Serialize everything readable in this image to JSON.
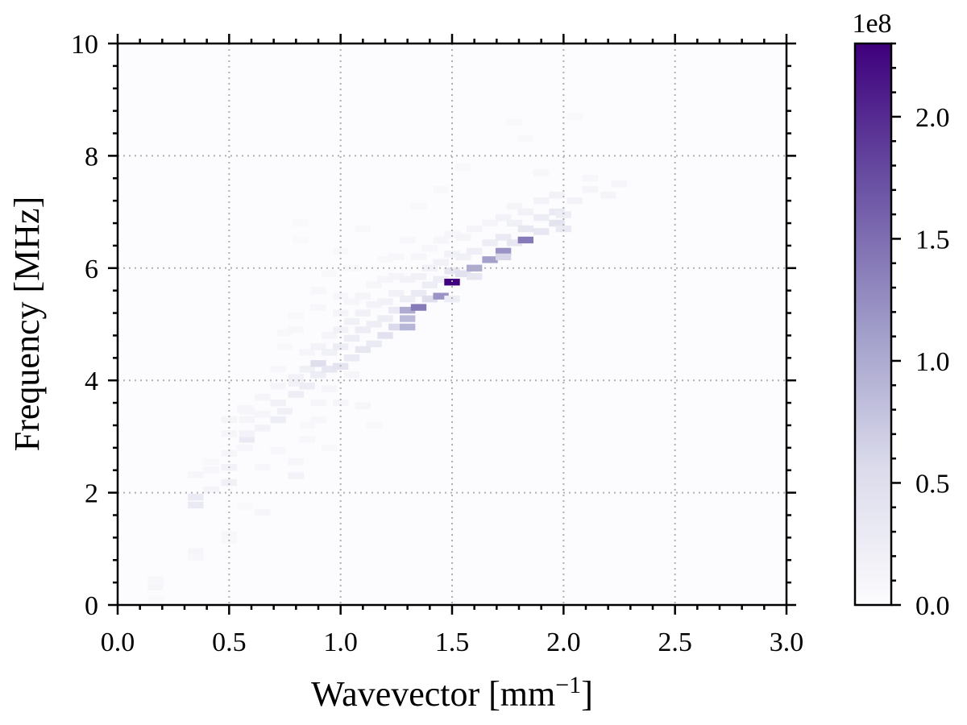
{
  "chart_data": {
    "type": "heatmap",
    "xlabel": "Wavevector [mm",
    "xlabel_sup": "−1",
    "xlabel_tail": "]",
    "ylabel": "Frequency [MHz]",
    "xlim": [
      0.0,
      3.0
    ],
    "ylim": [
      0,
      10
    ],
    "x_ticks": [
      0.0,
      0.5,
      1.0,
      1.5,
      2.0,
      2.5,
      3.0
    ],
    "x_tick_labels": [
      "0.0",
      "0.5",
      "1.0",
      "1.5",
      "2.0",
      "2.5",
      "3.0"
    ],
    "y_ticks": [
      0,
      2,
      4,
      6,
      8,
      10
    ],
    "y_tick_labels": [
      "0",
      "2",
      "4",
      "6",
      "8",
      "10"
    ],
    "grid": "dotted",
    "colormap": "Purples",
    "colors": {
      "low": "#fcfbfd",
      "mid": "#9e9ac8",
      "high": "#3f007d",
      "grid": "#b0b0b0",
      "axis": "#000000"
    },
    "colorbar": {
      "range": [
        0.0,
        2.3
      ],
      "exponent_label": "1e8",
      "ticks": [
        0.0,
        0.5,
        1.0,
        1.5,
        2.0
      ],
      "tick_labels": [
        "0.0",
        "0.5",
        "1.0",
        "1.5",
        "2.0"
      ]
    },
    "cells_note_units": "x in mm^-1, y in MHz, value in units of 1e8",
    "cells": [
      [
        0.17,
        0.45,
        0.08
      ],
      [
        0.17,
        0.32,
        0.1
      ],
      [
        0.17,
        0.1,
        0.05
      ],
      [
        0.35,
        0.95,
        0.1
      ],
      [
        0.35,
        0.85,
        0.08
      ],
      [
        0.35,
        2.32,
        0.1
      ],
      [
        0.35,
        1.92,
        0.3
      ],
      [
        0.35,
        1.78,
        0.3
      ],
      [
        0.42,
        2.05,
        0.12
      ],
      [
        0.42,
        2.4,
        0.08
      ],
      [
        0.42,
        2.55,
        0.06
      ],
      [
        0.5,
        2.18,
        0.2
      ],
      [
        0.5,
        2.45,
        0.15
      ],
      [
        0.5,
        2.7,
        0.1
      ],
      [
        0.5,
        3.05,
        0.1
      ],
      [
        0.5,
        3.3,
        0.12
      ],
      [
        0.5,
        1.25,
        0.08
      ],
      [
        0.5,
        1.15,
        0.06
      ],
      [
        0.57,
        2.8,
        0.08
      ],
      [
        0.57,
        3.5,
        0.1
      ],
      [
        0.57,
        1.75,
        0.05
      ],
      [
        0.58,
        3.3,
        0.12
      ],
      [
        0.58,
        3.45,
        0.1
      ],
      [
        0.58,
        2.95,
        0.3
      ],
      [
        0.58,
        3.05,
        0.15
      ],
      [
        0.65,
        3.15,
        0.15
      ],
      [
        0.65,
        3.7,
        0.12
      ],
      [
        0.65,
        2.45,
        0.08
      ],
      [
        0.65,
        3.4,
        0.1
      ],
      [
        0.65,
        1.65,
        0.1
      ],
      [
        0.72,
        3.3,
        0.25
      ],
      [
        0.72,
        3.6,
        0.18
      ],
      [
        0.72,
        3.9,
        0.12
      ],
      [
        0.72,
        4.2,
        0.08
      ],
      [
        0.72,
        2.75,
        0.08
      ],
      [
        0.75,
        3.45,
        0.2
      ],
      [
        0.75,
        4.6,
        0.06
      ],
      [
        0.75,
        4.85,
        0.06
      ],
      [
        0.8,
        3.75,
        0.25
      ],
      [
        0.8,
        4.05,
        0.18
      ],
      [
        0.8,
        3.95,
        0.18
      ],
      [
        0.8,
        2.3,
        0.15
      ],
      [
        0.8,
        2.55,
        0.1
      ],
      [
        0.8,
        4.9,
        0.08
      ],
      [
        0.8,
        5.15,
        0.06
      ],
      [
        0.82,
        6.8,
        0.05
      ],
      [
        0.82,
        6.5,
        0.05
      ],
      [
        0.85,
        3.9,
        0.25
      ],
      [
        0.85,
        4.2,
        0.2
      ],
      [
        0.85,
        4.5,
        0.1
      ],
      [
        0.85,
        2.95,
        0.08
      ],
      [
        0.85,
        3.2,
        0.06
      ],
      [
        0.9,
        4.3,
        0.5
      ],
      [
        0.9,
        4.1,
        0.25
      ],
      [
        0.9,
        4.6,
        0.15
      ],
      [
        0.9,
        5.3,
        0.08
      ],
      [
        0.9,
        5.6,
        0.08
      ],
      [
        0.9,
        3.6,
        0.1
      ],
      [
        0.9,
        3.3,
        0.08
      ],
      [
        0.95,
        4.2,
        0.35
      ],
      [
        0.95,
        4.5,
        0.2
      ],
      [
        0.95,
        4.8,
        0.12
      ],
      [
        0.95,
        3.85,
        0.1
      ],
      [
        0.95,
        2.8,
        0.06
      ],
      [
        0.95,
        5.9,
        0.06
      ],
      [
        1.0,
        4.25,
        0.4
      ],
      [
        1.0,
        4.6,
        0.25
      ],
      [
        1.0,
        4.9,
        0.18
      ],
      [
        1.0,
        5.2,
        0.12
      ],
      [
        1.0,
        5.5,
        0.08
      ],
      [
        1.0,
        3.6,
        0.1
      ],
      [
        1.0,
        6.3,
        0.06
      ],
      [
        1.05,
        4.4,
        0.3
      ],
      [
        1.05,
        4.75,
        0.25
      ],
      [
        1.05,
        5.05,
        0.2
      ],
      [
        1.05,
        5.4,
        0.1
      ],
      [
        1.05,
        4.1,
        0.1
      ],
      [
        1.05,
        6.0,
        0.06
      ],
      [
        1.1,
        4.55,
        0.35
      ],
      [
        1.1,
        4.9,
        0.25
      ],
      [
        1.1,
        5.2,
        0.18
      ],
      [
        1.1,
        5.5,
        0.12
      ],
      [
        1.1,
        3.55,
        0.1
      ],
      [
        1.1,
        6.7,
        0.06
      ],
      [
        1.15,
        4.65,
        0.3
      ],
      [
        1.15,
        5.0,
        0.22
      ],
      [
        1.15,
        5.35,
        0.15
      ],
      [
        1.15,
        5.7,
        0.1
      ],
      [
        1.15,
        3.2,
        0.06
      ],
      [
        1.2,
        4.8,
        0.45
      ],
      [
        1.2,
        5.1,
        0.25
      ],
      [
        1.2,
        5.4,
        0.18
      ],
      [
        1.2,
        5.8,
        0.1
      ],
      [
        1.2,
        6.15,
        0.06
      ],
      [
        1.25,
        4.95,
        0.55
      ],
      [
        1.25,
        5.25,
        0.3
      ],
      [
        1.25,
        5.55,
        0.18
      ],
      [
        1.25,
        5.85,
        0.12
      ],
      [
        1.25,
        6.2,
        0.08
      ],
      [
        1.3,
        5.1,
        0.85
      ],
      [
        1.3,
        5.25,
        1.0
      ],
      [
        1.3,
        4.95,
        0.9
      ],
      [
        1.3,
        5.45,
        0.25
      ],
      [
        1.3,
        5.8,
        0.15
      ],
      [
        1.3,
        6.5,
        0.08
      ],
      [
        1.35,
        5.3,
        1.4
      ],
      [
        1.35,
        5.55,
        0.3
      ],
      [
        1.35,
        5.85,
        0.18
      ],
      [
        1.35,
        6.2,
        0.1
      ],
      [
        1.35,
        7.1,
        0.06
      ],
      [
        1.4,
        5.45,
        0.5
      ],
      [
        1.4,
        5.7,
        0.25
      ],
      [
        1.4,
        6.0,
        0.15
      ],
      [
        1.4,
        6.35,
        0.08
      ],
      [
        1.45,
        5.5,
        1.2
      ],
      [
        1.45,
        5.8,
        0.25
      ],
      [
        1.45,
        6.1,
        0.18
      ],
      [
        1.45,
        6.5,
        0.1
      ],
      [
        1.45,
        7.4,
        0.06
      ],
      [
        1.5,
        5.75,
        2.3
      ],
      [
        1.5,
        5.95,
        0.35
      ],
      [
        1.5,
        6.25,
        0.18
      ],
      [
        1.5,
        6.6,
        0.1
      ],
      [
        1.5,
        5.45,
        0.25
      ],
      [
        1.55,
        5.9,
        0.45
      ],
      [
        1.55,
        6.2,
        0.2
      ],
      [
        1.55,
        6.55,
        0.12
      ],
      [
        1.55,
        7.8,
        0.06
      ],
      [
        1.6,
        6.0,
        1.0
      ],
      [
        1.6,
        5.85,
        0.35
      ],
      [
        1.6,
        6.3,
        0.22
      ],
      [
        1.6,
        6.7,
        0.12
      ],
      [
        1.67,
        6.15,
        1.1
      ],
      [
        1.67,
        6.45,
        0.25
      ],
      [
        1.67,
        6.8,
        0.12
      ],
      [
        1.73,
        6.3,
        1.2
      ],
      [
        1.73,
        6.2,
        0.6
      ],
      [
        1.73,
        6.55,
        0.3
      ],
      [
        1.73,
        6.9,
        0.15
      ],
      [
        1.78,
        6.45,
        0.35
      ],
      [
        1.78,
        6.8,
        0.2
      ],
      [
        1.78,
        7.1,
        0.12
      ],
      [
        1.78,
        8.6,
        0.06
      ],
      [
        1.83,
        6.5,
        1.4
      ],
      [
        1.83,
        6.7,
        0.35
      ],
      [
        1.83,
        7.0,
        0.18
      ],
      [
        1.83,
        8.3,
        0.06
      ],
      [
        1.9,
        6.65,
        0.35
      ],
      [
        1.9,
        6.9,
        0.25
      ],
      [
        1.9,
        7.2,
        0.15
      ],
      [
        1.9,
        7.7,
        0.08
      ],
      [
        1.97,
        6.8,
        0.4
      ],
      [
        1.97,
        7.0,
        0.3
      ],
      [
        1.97,
        7.3,
        0.18
      ],
      [
        2.0,
        6.7,
        0.3
      ],
      [
        2.0,
        6.95,
        0.25
      ],
      [
        2.05,
        7.2,
        0.15
      ],
      [
        2.05,
        8.7,
        0.06
      ],
      [
        2.12,
        7.4,
        0.12
      ],
      [
        2.12,
        7.6,
        0.08
      ],
      [
        2.2,
        7.3,
        0.12
      ],
      [
        2.25,
        7.5,
        0.1
      ]
    ]
  }
}
